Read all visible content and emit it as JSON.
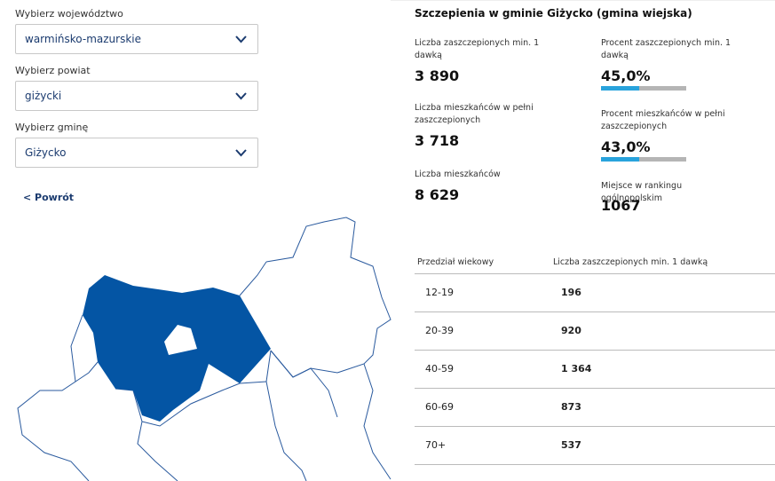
{
  "selectors": [
    {
      "label": "Wybierz województwo",
      "value": "warmińsko-mazurskie"
    },
    {
      "label": "Wybierz powiat",
      "value": "giżycki"
    },
    {
      "label": "Wybierz gminę",
      "value": "Giżycko"
    }
  ],
  "back_link": "< Powrót",
  "panel": {
    "title": "Szczepienia w gminie Giżycko (gmina wiejska)",
    "left_stats": [
      {
        "label": "Liczba zaszczepionych min. 1 dawką",
        "value": "3 890"
      },
      {
        "label": "Liczba mieszkańców w pełni zaszczepionych",
        "value": "3 718"
      },
      {
        "label": "Liczba mieszkańców",
        "value": "8 629"
      }
    ],
    "right_stats": [
      {
        "label": "Procent zaszczepionych min. 1 dawką",
        "value": "45,0%"
      },
      {
        "label": "Procent mieszkańców w pełni zaszczepionych",
        "value": "43,0%"
      },
      {
        "label": "Miejsce w rankingu ogólnopolskim",
        "value": "1067"
      }
    ]
  },
  "table": {
    "headers": [
      "Przedział wiekowy",
      "Liczba zaszczepionych min. 1 dawką"
    ],
    "rows": [
      [
        "12-19",
        "196"
      ],
      [
        "20-39",
        "920"
      ],
      [
        "40-59",
        "1 364"
      ],
      [
        "60-69",
        "873"
      ],
      [
        "70+",
        "537"
      ]
    ]
  }
}
